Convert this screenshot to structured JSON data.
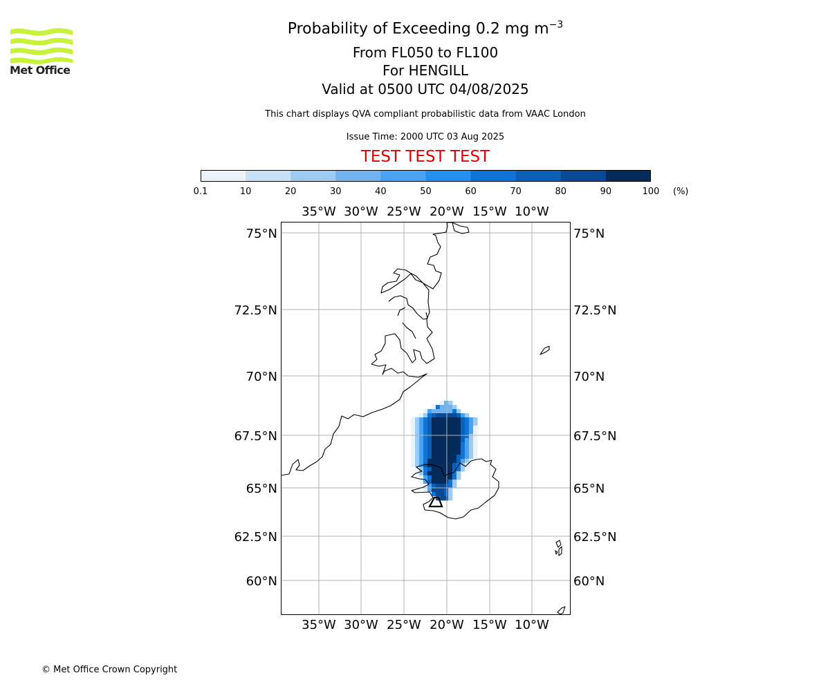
{
  "logo": {
    "name": "Met Office",
    "color": "#c6f23a"
  },
  "title": {
    "line1_prefix": "Probability of Exceeding 0.2 mg m",
    "line1_exponent": "−3",
    "line2": "From FL050 to FL100",
    "line3": "For HENGILL",
    "line4": "Valid at 0500 UTC 04/08/2025"
  },
  "subtitle": "This chart displays QVA compliant probabilistic data from VAAC London",
  "issue_time": "Issue Time: 2000 UTC 03 Aug 2025",
  "test_banner": "TEST TEST TEST",
  "colorbar": {
    "ticks": [
      "0.1",
      "10",
      "20",
      "30",
      "40",
      "50",
      "60",
      "70",
      "80",
      "90",
      "100"
    ],
    "colors": [
      "#eaf3fc",
      "#c7e0f6",
      "#9ecbf1",
      "#70b3ef",
      "#4aa3f2",
      "#2390ef",
      "#0f74d5",
      "#0a5fb7",
      "#084a94",
      "#052c5d"
    ],
    "unit": "(%)"
  },
  "map": {
    "lon_labels": [
      "35°W",
      "30°W",
      "25°W",
      "20°W",
      "15°W",
      "10°W"
    ],
    "lat_labels": [
      "75°N",
      "72.5°N",
      "70°N",
      "67.5°N",
      "65°N",
      "62.5°N",
      "60°N"
    ],
    "volcano": "HENGILL"
  },
  "copyright": "© Met Office Crown Copyright"
}
